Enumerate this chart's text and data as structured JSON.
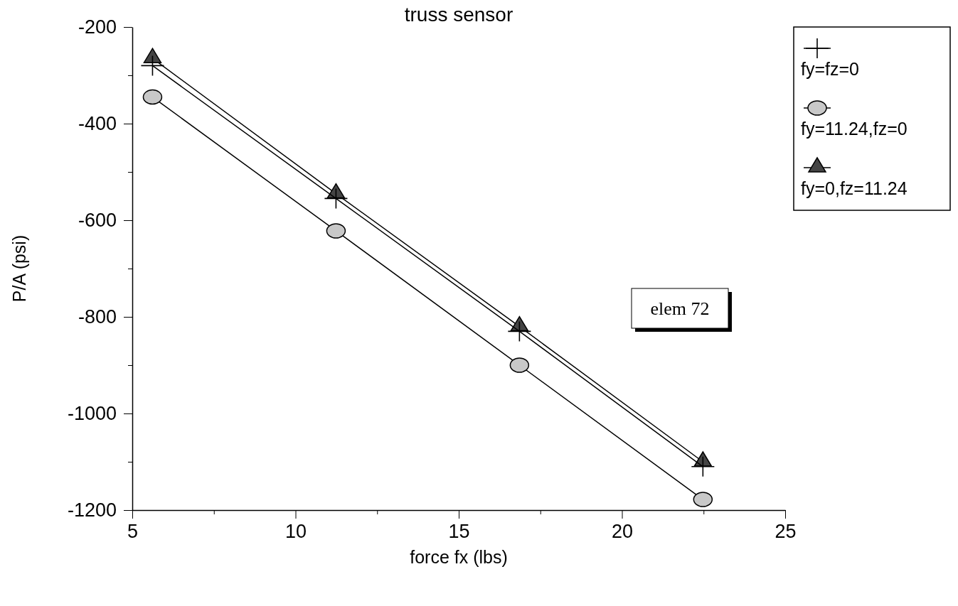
{
  "chart_data": {
    "type": "line",
    "title": "truss sensor",
    "xlabel": "force fx (lbs)",
    "ylabel": "P/A (psi)",
    "x": [
      5.62,
      11.24,
      16.86,
      22.48
    ],
    "series": [
      {
        "name": "fy=fz=0",
        "color": "#000000",
        "marker": "cross",
        "values": [
          -280,
          -555,
          -830,
          -1110
        ]
      },
      {
        "name": "fy=11.24,fz=0",
        "color": "#000000",
        "marker": "circle",
        "values": [
          -345,
          -622,
          -900,
          -1178
        ]
      },
      {
        "name": "fy=0,fz=11.24",
        "color": "#000000",
        "marker": "triangle",
        "values": [
          -265,
          -545,
          -820,
          -1100
        ]
      }
    ],
    "xlim": [
      5,
      25
    ],
    "xticks": [
      5,
      {
        "value": 7.5,
        "label": null
      },
      10,
      {
        "value": 12.5,
        "label": null
      },
      15,
      {
        "value": 17.5,
        "label": null
      },
      20,
      {
        "value": 22.5,
        "label": null
      },
      25
    ],
    "ylim": [
      -1200,
      -200
    ],
    "yticks": [
      -1200,
      {
        "value": -1100,
        "label": null
      },
      -1000,
      {
        "value": -900,
        "label": null
      },
      -800,
      {
        "value": -700,
        "label": null
      },
      -600,
      {
        "value": -500,
        "label": null
      },
      -400,
      {
        "value": -300,
        "label": null
      },
      -200
    ],
    "annotations": [
      "elem 72"
    ],
    "legend": "right",
    "grid": false,
    "line_style": "solid"
  }
}
